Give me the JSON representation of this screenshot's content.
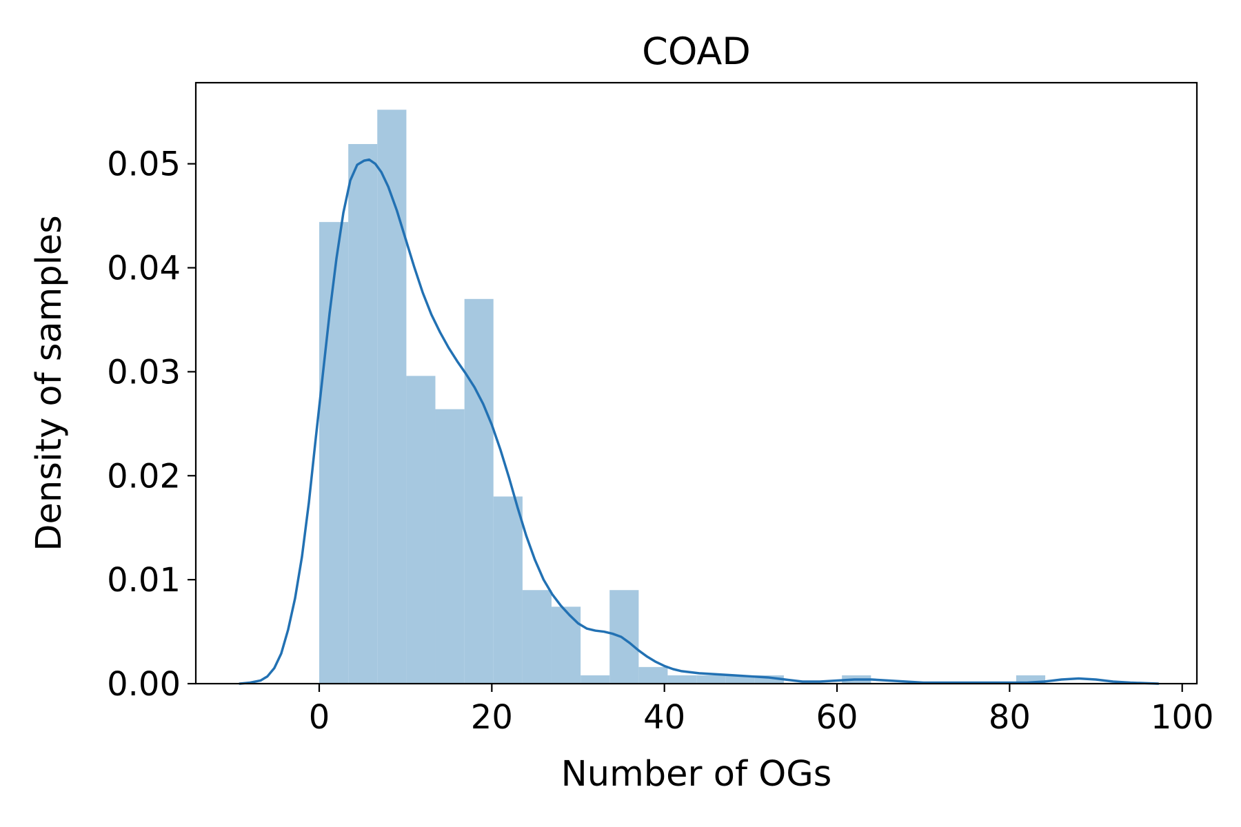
{
  "chart_data": {
    "type": "bar",
    "title": "COAD",
    "xlabel": "Number of OGs",
    "ylabel": "Density of samples",
    "xlim": [
      -14.3,
      101.7
    ],
    "ylim": [
      0,
      0.0578
    ],
    "x_ticks": [
      0,
      20,
      40,
      60,
      80,
      100
    ],
    "x_tick_labels": [
      "0",
      "20",
      "40",
      "60",
      "80",
      "100"
    ],
    "y_ticks": [
      0,
      0.01,
      0.02,
      0.03,
      0.04,
      0.05
    ],
    "y_tick_labels": [
      "0.00",
      "0.01",
      "0.02",
      "0.03",
      "0.04",
      "0.05"
    ],
    "grid": false,
    "colors": {
      "bars": "#a6c8e0",
      "kde": "#2271b3",
      "axes": "#000000"
    },
    "histogram": {
      "bin_edges": [
        0,
        3.37,
        6.73,
        10.1,
        13.46,
        16.83,
        20.19,
        23.56,
        26.92,
        30.29,
        33.65,
        37.02,
        40.38,
        43.75,
        47.11,
        50.48,
        53.84,
        57.21,
        60.57,
        63.94,
        67.3,
        70.67,
        74.03,
        77.4,
        80.76,
        84.13,
        87.49
      ],
      "values": [
        0.0444,
        0.0519,
        0.0552,
        0.0296,
        0.0264,
        0.037,
        0.018,
        0.009,
        0.0074,
        0.0008,
        0.009,
        0.0016,
        0.0008,
        0.0008,
        0.0008,
        0.0008,
        0,
        0,
        0.0008,
        0,
        0,
        0,
        0,
        0,
        0.0008,
        0
      ]
    },
    "kde": {
      "x": [
        -9.2,
        -8,
        -6.8,
        -6,
        -5.2,
        -4.4,
        -3.6,
        -2.8,
        -2,
        -1.2,
        -0.4,
        0.4,
        1.2,
        2,
        2.8,
        3.6,
        4.4,
        5.2,
        5.8,
        6.5,
        7.2,
        8,
        9,
        10,
        11,
        12,
        13,
        14,
        15,
        16,
        17,
        18,
        19,
        20,
        21,
        22,
        23,
        24,
        25,
        26,
        27,
        28,
        29,
        30,
        31,
        32,
        33,
        34,
        35,
        36,
        37,
        38,
        39,
        40,
        41,
        42,
        43,
        44,
        46,
        48,
        50,
        52,
        54,
        56,
        58,
        60,
        62,
        64,
        66,
        68,
        70,
        72,
        74,
        76,
        78,
        80,
        82,
        84,
        86,
        88,
        90,
        92,
        94,
        97.2
      ],
      "y": [
        0,
        0.0001,
        0.0003,
        0.0007,
        0.0015,
        0.0029,
        0.0052,
        0.0082,
        0.0122,
        0.0174,
        0.0236,
        0.0296,
        0.0356,
        0.0409,
        0.0453,
        0.0484,
        0.0499,
        0.0503,
        0.0504,
        0.05,
        0.0492,
        0.0478,
        0.0455,
        0.0428,
        0.0401,
        0.0376,
        0.0355,
        0.0338,
        0.0323,
        0.031,
        0.0298,
        0.0285,
        0.0269,
        0.0249,
        0.0225,
        0.0198,
        0.0169,
        0.0142,
        0.0119,
        0.01,
        0.0086,
        0.0075,
        0.0066,
        0.0058,
        0.0053,
        0.0051,
        0.005,
        0.0048,
        0.0045,
        0.0039,
        0.0032,
        0.0026,
        0.0021,
        0.0017,
        0.0014,
        0.0012,
        0.0011,
        0.001,
        0.0009,
        0.0008,
        0.0007,
        0.0006,
        0.0004,
        0.0002,
        0.0002,
        0.0003,
        0.0004,
        0.0004,
        0.0003,
        0.0002,
        0.0001,
        0.0001,
        0.0001,
        0.0001,
        0.0001,
        0.0001,
        0.0001,
        0.0002,
        0.0004,
        0.0005,
        0.0004,
        0.0002,
        0.0001,
        0
      ]
    }
  }
}
